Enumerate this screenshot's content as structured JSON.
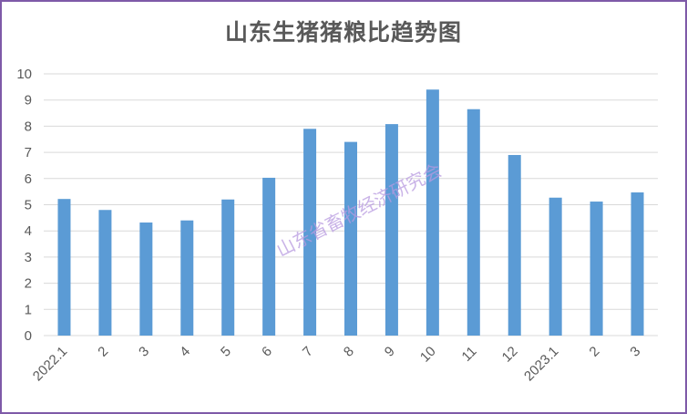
{
  "chart_data": {
    "type": "bar",
    "title": "山东生猪猪粮比趋势图",
    "categories": [
      "2022.1",
      "2",
      "3",
      "4",
      "5",
      "6",
      "7",
      "8",
      "9",
      "10",
      "11",
      "12",
      "2023.1",
      "2",
      "3"
    ],
    "values": [
      5.22,
      4.8,
      4.32,
      4.4,
      5.2,
      6.03,
      7.9,
      7.4,
      8.08,
      9.4,
      8.65,
      6.9,
      5.27,
      5.12,
      5.47
    ],
    "xlabel": "",
    "ylabel": "",
    "ylim": [
      0,
      10
    ],
    "yticks": [
      "0",
      "1",
      "2",
      "3",
      "4",
      "5",
      "6",
      "7",
      "8",
      "9",
      "10"
    ],
    "grid": true,
    "legend": "none",
    "bar_color": "#5b9bd5",
    "grid_color": "#d9d9d9",
    "watermark": "山东省畜牧经济研究会"
  }
}
